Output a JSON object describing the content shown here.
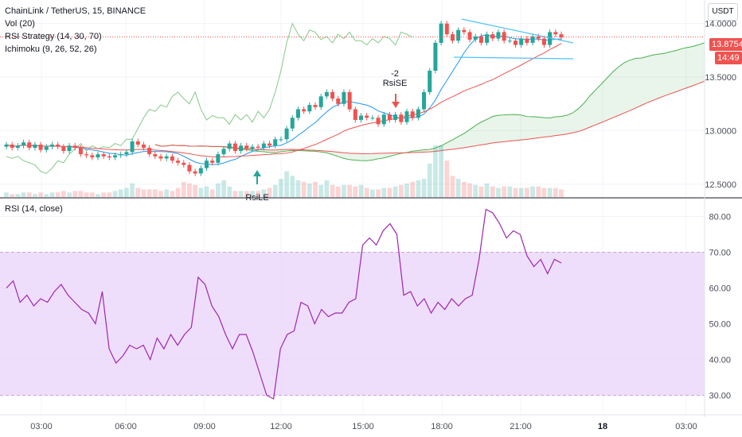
{
  "header": {
    "symbol_line": "ChainLink / TetherUS, 15, BINANCE",
    "studies": [
      "Vol (20)",
      "RSI Strategy (14, 30, 70)",
      "Ichimoku (9, 26, 52, 26)"
    ],
    "rsi_label": "RSI (14, close)",
    "currency": "USDT"
  },
  "annotations": {
    "short_signal_count": "-2",
    "short_signal_label": "RsiSE",
    "long_signal_label": "RsiLE"
  },
  "price_tags": {
    "last_price": "13.8754",
    "countdown": "14:49"
  },
  "colors": {
    "up": "#26a69a",
    "down": "#ef5350",
    "rsi": "#9c27b0",
    "cloud": "#4caf50",
    "baseline": "#ef5350",
    "conversion": "#2196f3",
    "band": "#e9d3f9"
  },
  "chart_data": [
    {
      "type": "candlestick",
      "title": "ChainLink / TetherUS, 15, BINANCE",
      "x_ticks": [
        "03:00",
        "06:00",
        "09:00",
        "12:00",
        "15:00",
        "18:00",
        "21:00",
        "18",
        "03:00"
      ],
      "y_ticks": [
        "14.0000",
        "13.5000",
        "13.0000",
        "12.5000"
      ],
      "ylim": [
        12.38,
        14.22
      ],
      "close": [
        12.87,
        12.84,
        12.86,
        12.89,
        12.84,
        12.87,
        12.82,
        12.85,
        12.87,
        12.85,
        12.81,
        12.86,
        12.84,
        12.78,
        12.77,
        12.75,
        12.78,
        12.76,
        12.75,
        12.77,
        12.78,
        12.8,
        12.9,
        12.87,
        12.84,
        12.78,
        12.76,
        12.74,
        12.76,
        12.72,
        12.7,
        12.68,
        12.62,
        12.6,
        12.65,
        12.72,
        12.7,
        12.78,
        12.83,
        12.88,
        12.81,
        12.86,
        12.83,
        12.85,
        12.84,
        12.88,
        12.86,
        12.92,
        12.92,
        13.02,
        13.12,
        13.2,
        13.18,
        13.24,
        13.22,
        13.32,
        13.36,
        13.3,
        13.25,
        13.36,
        13.2,
        13.1,
        13.14,
        13.12,
        13.12,
        13.06,
        13.15,
        13.1,
        13.15,
        13.08,
        13.18,
        13.12,
        13.2,
        13.36,
        13.56,
        13.82,
        14.0,
        13.9,
        13.84,
        13.94,
        13.92,
        13.85,
        13.88,
        13.82,
        13.9,
        13.86,
        13.92,
        13.84,
        13.84,
        13.8,
        13.86,
        13.82,
        13.88,
        13.86,
        13.8,
        13.92,
        13.9,
        13.87
      ],
      "volume_scale": "relative",
      "volume": [
        0.3,
        0.2,
        0.2,
        0.3,
        0.3,
        0.2,
        0.3,
        0.2,
        0.3,
        0.3,
        0.4,
        0.3,
        0.4,
        0.4,
        0.3,
        0.3,
        0.2,
        0.3,
        0.3,
        0.4,
        0.5,
        0.6,
        0.9,
        0.6,
        0.5,
        0.5,
        0.5,
        0.4,
        0.5,
        0.4,
        0.6,
        1.0,
        0.9,
        0.8,
        0.6,
        0.7,
        0.5,
        0.9,
        1.1,
        0.7,
        0.4,
        0.4,
        0.4,
        0.4,
        0.4,
        0.5,
        0.6,
        0.8,
        1.2,
        1.7,
        1.4,
        1.1,
        1.0,
        0.9,
        1.0,
        0.8,
        1.1,
        0.8,
        0.7,
        0.8,
        0.8,
        0.7,
        0.8,
        0.6,
        0.5,
        0.5,
        0.6,
        0.6,
        0.7,
        0.8,
        0.9,
        1.0,
        1.1,
        1.2,
        2.2,
        3.4,
        3.4,
        2.4,
        1.4,
        1.2,
        1.0,
        0.9,
        0.8,
        0.7,
        0.9,
        0.7,
        0.6,
        0.7,
        0.7,
        0.6,
        0.6,
        0.6,
        0.7,
        0.7,
        0.6,
        0.6,
        0.6,
        0.5
      ]
    },
    {
      "type": "line",
      "title": "RSI (14, close)",
      "series": [
        {
          "values": [
            60,
            62,
            56,
            58,
            55,
            57,
            56,
            59,
            61,
            58,
            56,
            54,
            53,
            50,
            59,
            43,
            39,
            41,
            44,
            43,
            44,
            40,
            46,
            43,
            47,
            44,
            47,
            49,
            63,
            61,
            55,
            52,
            47,
            43,
            47,
            47,
            42,
            36,
            30,
            29,
            43,
            47,
            48,
            56,
            55,
            50,
            54,
            52,
            53,
            53,
            56,
            57,
            72,
            74,
            72,
            76,
            78,
            75,
            58,
            59,
            55,
            57,
            53,
            56,
            54,
            57,
            55,
            57,
            58,
            68,
            82,
            81,
            78,
            74,
            76,
            75,
            69,
            66,
            68,
            64,
            68,
            67
          ]
        }
      ],
      "y_ticks": [
        "80.00",
        "70.00",
        "60.00",
        "50.00",
        "40.00",
        "30.00"
      ],
      "ylim": [
        25,
        85
      ],
      "bands": [
        30,
        70
      ]
    }
  ]
}
